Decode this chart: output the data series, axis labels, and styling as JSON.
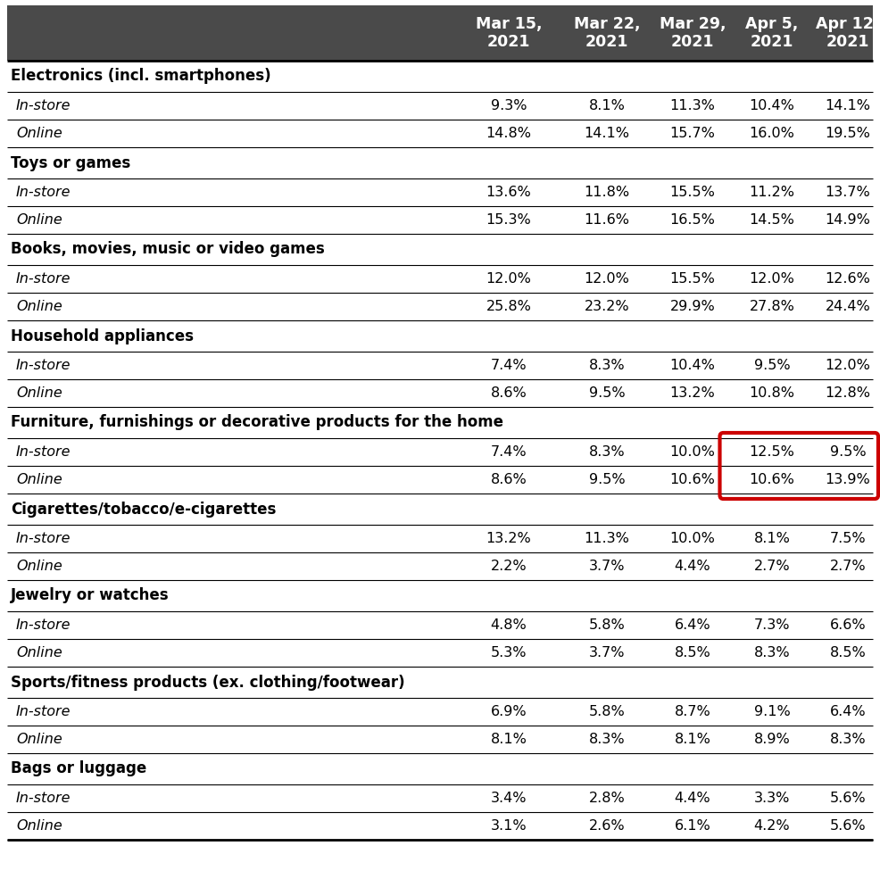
{
  "header_bg": "#4a4a4a",
  "header_text_color": "#ffffff",
  "header_font_size": 12.5,
  "body_font_size": 11.5,
  "category_font_size": 12.0,
  "columns": [
    "Mar 15,\n2021",
    "Mar 22,\n2021",
    "Mar 29,\n2021",
    "Apr 5,\n2021",
    "Apr 12,\n2021"
  ],
  "categories": [
    {
      "name": "Electronics (incl. smartphones)",
      "rows": [
        {
          "label": "In-store",
          "values": [
            "9.3%",
            "8.1%",
            "11.3%",
            "10.4%",
            "14.1%"
          ]
        },
        {
          "label": "Online",
          "values": [
            "14.8%",
            "14.1%",
            "15.7%",
            "16.0%",
            "19.5%"
          ]
        }
      ]
    },
    {
      "name": "Toys or games",
      "rows": [
        {
          "label": "In-store",
          "values": [
            "13.6%",
            "11.8%",
            "15.5%",
            "11.2%",
            "13.7%"
          ]
        },
        {
          "label": "Online",
          "values": [
            "15.3%",
            "11.6%",
            "16.5%",
            "14.5%",
            "14.9%"
          ]
        }
      ]
    },
    {
      "name": "Books, movies, music or video games",
      "rows": [
        {
          "label": "In-store",
          "values": [
            "12.0%",
            "12.0%",
            "15.5%",
            "12.0%",
            "12.6%"
          ]
        },
        {
          "label": "Online",
          "values": [
            "25.8%",
            "23.2%",
            "29.9%",
            "27.8%",
            "24.4%"
          ]
        }
      ]
    },
    {
      "name": "Household appliances",
      "rows": [
        {
          "label": "In-store",
          "values": [
            "7.4%",
            "8.3%",
            "10.4%",
            "9.5%",
            "12.0%"
          ]
        },
        {
          "label": "Online",
          "values": [
            "8.6%",
            "9.5%",
            "13.2%",
            "10.8%",
            "12.8%"
          ]
        }
      ]
    },
    {
      "name": "Furniture, furnishings or decorative products for the home",
      "highlight_box": true,
      "rows": [
        {
          "label": "In-store",
          "values": [
            "7.4%",
            "8.3%",
            "10.0%",
            "12.5%",
            "9.5%"
          ]
        },
        {
          "label": "Online",
          "values": [
            "8.6%",
            "9.5%",
            "10.6%",
            "10.6%",
            "13.9%"
          ]
        }
      ]
    },
    {
      "name": "Cigarettes/tobacco/e-cigarettes",
      "rows": [
        {
          "label": "In-store",
          "values": [
            "13.2%",
            "11.3%",
            "10.0%",
            "8.1%",
            "7.5%"
          ]
        },
        {
          "label": "Online",
          "values": [
            "2.2%",
            "3.7%",
            "4.4%",
            "2.7%",
            "2.7%"
          ]
        }
      ]
    },
    {
      "name": "Jewelry or watches",
      "rows": [
        {
          "label": "In-store",
          "values": [
            "4.8%",
            "5.8%",
            "6.4%",
            "7.3%",
            "6.6%"
          ]
        },
        {
          "label": "Online",
          "values": [
            "5.3%",
            "3.7%",
            "8.5%",
            "8.3%",
            "8.5%"
          ]
        }
      ]
    },
    {
      "name": "Sports/fitness products (ex. clothing/footwear)",
      "rows": [
        {
          "label": "In-store",
          "values": [
            "6.9%",
            "5.8%",
            "8.7%",
            "9.1%",
            "6.4%"
          ]
        },
        {
          "label": "Online",
          "values": [
            "8.1%",
            "8.3%",
            "8.1%",
            "8.9%",
            "8.3%"
          ]
        }
      ]
    },
    {
      "name": "Bags or luggage",
      "rows": [
        {
          "label": "In-store",
          "values": [
            "3.4%",
            "2.8%",
            "4.4%",
            "3.3%",
            "5.6%"
          ]
        },
        {
          "label": "Online",
          "values": [
            "3.1%",
            "2.6%",
            "6.1%",
            "4.2%",
            "5.6%"
          ]
        }
      ]
    }
  ]
}
